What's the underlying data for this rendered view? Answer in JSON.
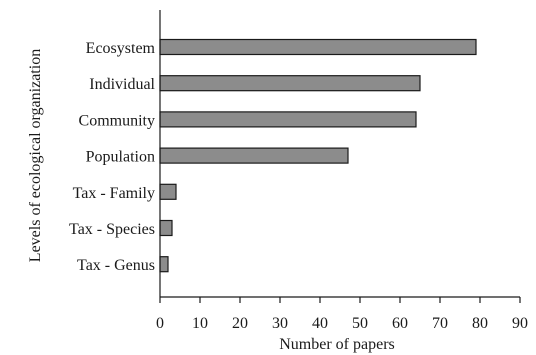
{
  "chart_data": {
    "type": "bar",
    "orientation": "horizontal",
    "categories": [
      "Ecosystem",
      "Individual",
      "Community",
      "Population",
      "Tax - Family",
      "Tax - Species",
      "Tax - Genus"
    ],
    "values": [
      79,
      65,
      64,
      47,
      4,
      3,
      2
    ],
    "xlabel": "Number of papers",
    "ylabel": "Levels of ecological organization",
    "xlim": [
      0,
      90
    ],
    "xticks": [
      0,
      10,
      20,
      30,
      40,
      50,
      60,
      70,
      80,
      90
    ],
    "grid": false,
    "legend": "none",
    "bar_color": "#8c8c8c"
  }
}
